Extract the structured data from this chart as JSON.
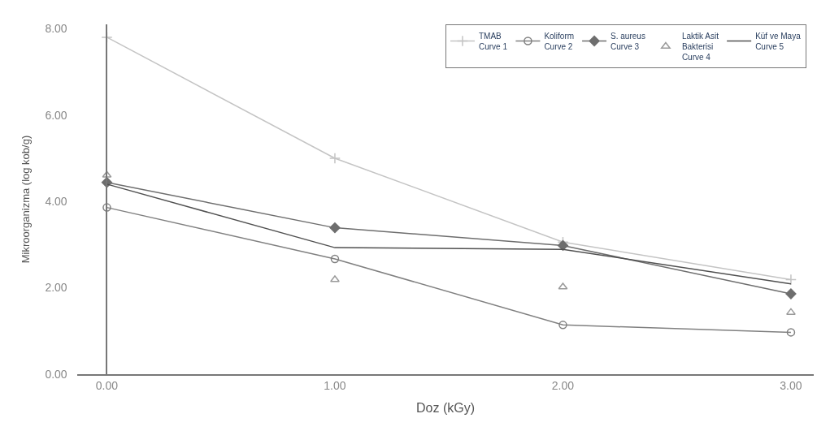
{
  "chart_data": {
    "type": "line",
    "xlabel": "Doz (kGy)",
    "ylabel": "Mikroorganizma (log kob/g)",
    "x": [
      0,
      1,
      2,
      3
    ],
    "xlim": [
      -0.13,
      3.1
    ],
    "xticks": [
      {
        "value": 0,
        "label": "0.00"
      },
      {
        "value": 1,
        "label": "1.00"
      },
      {
        "value": 2,
        "label": "2.00"
      },
      {
        "value": 3,
        "label": "3.00"
      }
    ],
    "ylim": [
      0,
      8.1
    ],
    "yticks": [
      {
        "value": 0,
        "label": "0.00"
      },
      {
        "value": 2,
        "label": "2.00"
      },
      {
        "value": 4,
        "label": "4.00"
      },
      {
        "value": 6,
        "label": "6.00"
      },
      {
        "value": 8,
        "label": "8.00"
      }
    ],
    "legend": "top right",
    "series": [
      {
        "name": "TMAB\nCurve 1",
        "color": "#c4c4c4",
        "marker": "cross",
        "values": [
          7.8,
          5.0,
          3.06,
          2.19
        ]
      },
      {
        "name": "Koliform\nCurve 2",
        "color": "#808080",
        "marker": "circle",
        "values": [
          3.86,
          2.67,
          1.14,
          0.97
        ]
      },
      {
        "name": "S. aureus\nCurve 3",
        "color": "#6e6e6e",
        "marker": "diamond",
        "values": [
          4.44,
          3.39,
          2.98,
          1.86
        ]
      },
      {
        "name": "Laktik Asit\nBakterisi\nCurve 4",
        "color": "#9a9a9a",
        "type": "scatter",
        "marker": "triangle",
        "values": [
          4.61,
          2.19,
          2.02,
          1.43
        ]
      },
      {
        "name": "Küf ve Maya\nCurve 5",
        "color": "#505050",
        "marker": "none",
        "values": [
          4.4,
          2.93,
          2.89,
          2.09
        ]
      }
    ]
  }
}
